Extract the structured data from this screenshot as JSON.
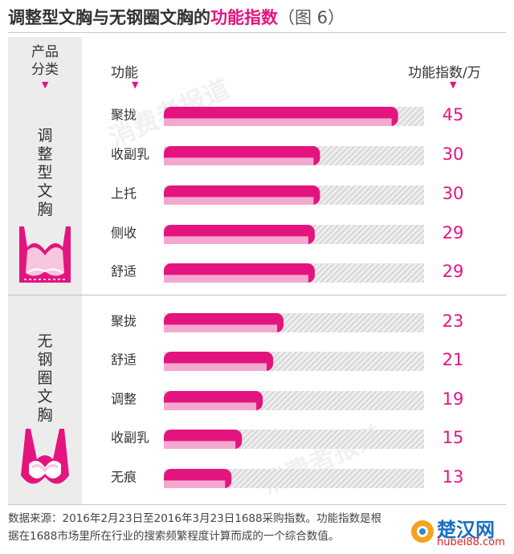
{
  "title": {
    "main": "调整型文胸与无钢圈文胸的",
    "highlight": "功能指数",
    "fig": "（图 6）"
  },
  "header": {
    "category": [
      "产品",
      "分类"
    ],
    "feature": "功能",
    "index": "功能指数/万"
  },
  "groups": [
    {
      "label": [
        "调",
        "整",
        "型",
        "文",
        "胸"
      ]
    },
    {
      "label": [
        "无",
        "钢",
        "圈",
        "文",
        "胸"
      ]
    }
  ],
  "chart_data": {
    "type": "bar",
    "orientation": "horizontal",
    "groups": [
      "调整型文胸",
      "无钢圈文胸"
    ],
    "rows": [
      {
        "group": "调整型文胸",
        "category": "聚拢",
        "value": 45
      },
      {
        "group": "调整型文胸",
        "category": "收副乳",
        "value": 30
      },
      {
        "group": "调整型文胸",
        "category": "上托",
        "value": 30
      },
      {
        "group": "调整型文胸",
        "category": "侧收",
        "value": 29
      },
      {
        "group": "调整型文胸",
        "category": "舒适",
        "value": 29
      },
      {
        "group": "无钢圈文胸",
        "category": "聚拢",
        "value": 23
      },
      {
        "group": "无钢圈文胸",
        "category": "舒适",
        "value": 21
      },
      {
        "group": "无钢圈文胸",
        "category": "调整",
        "value": 19
      },
      {
        "group": "无钢圈文胸",
        "category": "收副乳",
        "value": 15
      },
      {
        "group": "无钢圈文胸",
        "category": "无痕",
        "value": 13
      }
    ],
    "xlim": [
      0,
      50
    ],
    "unit": "万",
    "grid": false,
    "colors": {
      "bar": "#e4147f",
      "bar_light": "#f3a9cf",
      "track": "#d9d9d9",
      "value": "#e4147f"
    }
  },
  "footnote": {
    "line1": "数据来源：2016年2月23日至2016年3月23日1688采购指数。功能指数是根",
    "line2": "据在1688市场里所在行业的搜索频繁程度计算而成的一个综合数值。"
  },
  "watermark": "消费者报道",
  "logo": {
    "name": "楚汉网",
    "url": "hubei88.com"
  }
}
